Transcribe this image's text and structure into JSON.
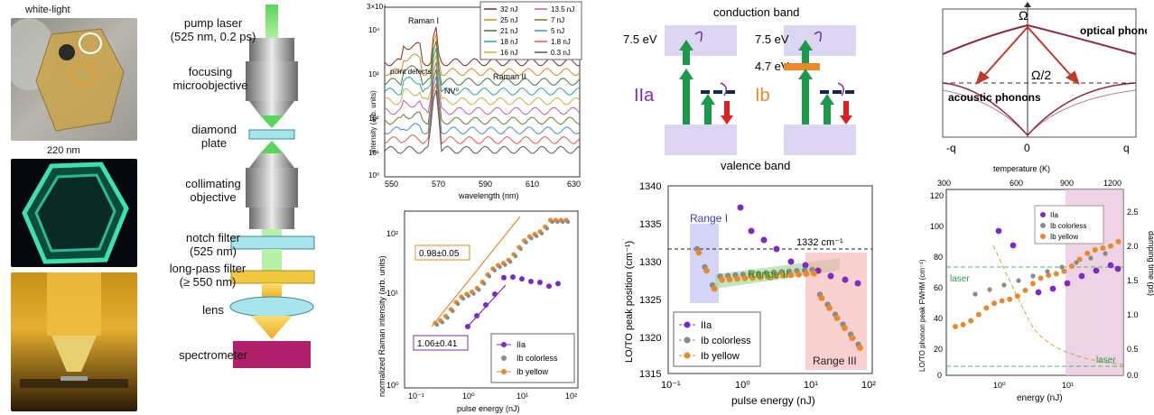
{
  "photos": {
    "p1_label": "white-light",
    "p2_label": "220 nm"
  },
  "setup": {
    "labels": [
      "pump laser\n(525 nm, 0.2 ps)",
      "focusing\nmicroobjective",
      "diamond\nplate",
      "collimating\nobjective",
      "notch filter\n(525 nm)",
      "long-pass filter\n(≥ 550 nm)",
      "lens",
      "spectrometer"
    ]
  },
  "spectra": {
    "ylabel": "intensity (arb. units)",
    "xlabel": "wavelength (nm)",
    "y_top_label": "3×10⁴",
    "xticks": [
      "550",
      "570",
      "590",
      "610",
      "630"
    ],
    "yticks": [
      "10⁴",
      "10³",
      "10²",
      "10¹",
      "10⁰"
    ],
    "annotations": [
      "Raman I",
      "point\ndefects",
      "NV⁰",
      "Raman II"
    ],
    "legend": [
      "32 nJ",
      "25 nJ",
      "21 nJ",
      "18 nJ",
      "16 nJ",
      "13.5 nJ",
      "7 nJ",
      "5 nJ",
      "1.8 nJ",
      "0.3 nJ"
    ],
    "colors": [
      "#8b2a1b",
      "#d98a1a",
      "#3d7a3a",
      "#2aa2a8",
      "#c8b23a",
      "#c45ea0",
      "#6a7a2a",
      "#4a8ac8",
      "#e05a4a",
      "#555555"
    ]
  },
  "raman_scaling": {
    "ylabel": "normalized Raman intensity (arb. units)",
    "xlabel": "pulse energy (nJ)",
    "xticks": [
      "10⁻¹",
      "10⁰",
      "10¹",
      "10²"
    ],
    "yticks": [
      "10²",
      "10¹",
      "10⁰"
    ],
    "fit1": "0.98±0.05",
    "fit2": "1.06±0.41",
    "legend": [
      "IIa",
      "Ib colorless",
      "Ib yellow"
    ]
  },
  "bands": {
    "conduction": "conduction band",
    "valence": "valence band",
    "e1": "7.5 eV",
    "e2": "7.5 eV",
    "e3": "4.7 eV",
    "type_a": "IIa",
    "type_b": "Ib"
  },
  "peak_position": {
    "ylabel": "LO/TO peak position (cm⁻¹)",
    "xlabel": "pulse energy (nJ)",
    "yticks": [
      "1340",
      "1335",
      "1330",
      "1325",
      "1320",
      "1315"
    ],
    "xticks": [
      "10⁻¹",
      "10⁰",
      "10¹",
      "10²"
    ],
    "ref_line": "1332 cm⁻¹",
    "ranges": [
      "Range I",
      "Range II",
      "Range III"
    ],
    "legend": [
      "IIa",
      "Ib colorless",
      "Ib yellow"
    ]
  },
  "phonons": {
    "omega": "Ω",
    "half_omega": "Ω/2",
    "optical": "optical\nphonons",
    "acoustic": "acoustic\nphonons",
    "xticks": [
      "-q",
      "0",
      "q"
    ]
  },
  "fwhm": {
    "top_label": "temperature (K)",
    "top_ticks": [
      "300",
      "600",
      "900",
      "1200"
    ],
    "ylabel": "LO/TO phonon peak FWHM (cm⁻¹)",
    "y2label": "damping time (ps)",
    "xlabel": "energy (nJ)",
    "yticks": [
      "120",
      "100",
      "80",
      "60",
      "40",
      "20",
      "0"
    ],
    "y2ticks": [
      "2.5",
      "2.0",
      "1.5",
      "1.0",
      "0.5",
      "0.0"
    ],
    "xticks": [
      "10⁰",
      "10¹"
    ],
    "laser1": "laser",
    "laser2": "laser",
    "legend": [
      "IIa",
      "Ib colorless",
      "Ib yellow"
    ]
  },
  "colors": {
    "purple": "#7b2bc4",
    "gray": "#8a8a8a",
    "orange": "#e8892a",
    "green_arrow": "#1a9a4a",
    "red_arrow": "#e02020",
    "band_fill": "#ddd6f2"
  }
}
